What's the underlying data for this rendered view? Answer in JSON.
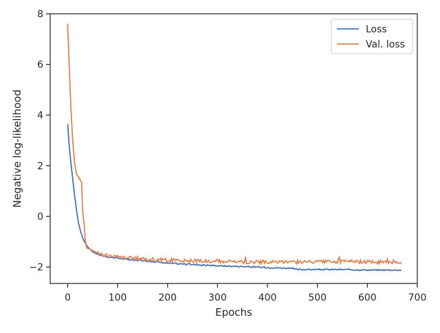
{
  "chart_data": {
    "type": "line",
    "title": "",
    "xlabel": "Epochs",
    "ylabel": "Negative log-likelihood",
    "xlim": [
      -35,
      700
    ],
    "ylim": [
      -2.65,
      8.0
    ],
    "xticks": [
      0,
      100,
      200,
      300,
      400,
      500,
      600,
      700
    ],
    "yticks": [
      -2,
      0,
      2,
      4,
      6,
      8
    ],
    "xtick_labels": [
      "0",
      "100",
      "200",
      "300",
      "400",
      "500",
      "600",
      "700"
    ],
    "ytick_labels": [
      "−2",
      "0",
      "2",
      "4",
      "6",
      "8"
    ],
    "grid": false,
    "legend_position": "top-right",
    "series": [
      {
        "name": "Loss",
        "color": "#4c72b0",
        "points": [
          [
            0,
            3.65
          ],
          [
            3,
            2.8
          ],
          [
            6,
            2.2
          ],
          [
            10,
            1.5
          ],
          [
            14,
            0.8
          ],
          [
            18,
            0.2
          ],
          [
            22,
            -0.3
          ],
          [
            26,
            -0.6
          ],
          [
            30,
            -0.85
          ],
          [
            35,
            -1.05
          ],
          [
            40,
            -1.2
          ],
          [
            50,
            -1.4
          ],
          [
            60,
            -1.5
          ],
          [
            70,
            -1.55
          ],
          [
            80,
            -1.6
          ],
          [
            100,
            -1.65
          ],
          [
            120,
            -1.7
          ],
          [
            150,
            -1.75
          ],
          [
            180,
            -1.8
          ],
          [
            200,
            -1.85
          ],
          [
            250,
            -1.9
          ],
          [
            300,
            -1.95
          ],
          [
            350,
            -1.98
          ],
          [
            400,
            -2.02
          ],
          [
            430,
            -2.04
          ],
          [
            450,
            -2.06
          ],
          [
            460,
            -2.1
          ],
          [
            500,
            -2.1
          ],
          [
            550,
            -2.1
          ],
          [
            600,
            -2.12
          ],
          [
            640,
            -2.12
          ],
          [
            668,
            -2.12
          ]
        ]
      },
      {
        "name": "Val. loss",
        "color": "#dd8452",
        "points": [
          [
            0,
            7.6
          ],
          [
            3,
            6.0
          ],
          [
            6,
            4.5
          ],
          [
            10,
            3.0
          ],
          [
            14,
            2.1
          ],
          [
            18,
            1.65
          ],
          [
            22,
            1.55
          ],
          [
            26,
            1.4
          ],
          [
            28,
            1.35
          ],
          [
            30,
            0.2
          ],
          [
            33,
            -0.3
          ],
          [
            35,
            -0.9
          ],
          [
            38,
            -1.25
          ],
          [
            45,
            -1.3
          ],
          [
            55,
            -1.4
          ],
          [
            65,
            -1.5
          ],
          [
            80,
            -1.55
          ],
          [
            100,
            -1.6
          ],
          [
            130,
            -1.65
          ],
          [
            160,
            -1.7
          ],
          [
            200,
            -1.72
          ],
          [
            250,
            -1.75
          ],
          [
            300,
            -1.77
          ],
          [
            350,
            -1.8
          ],
          [
            400,
            -1.8
          ],
          [
            450,
            -1.8
          ],
          [
            500,
            -1.8
          ],
          [
            550,
            -1.78
          ],
          [
            600,
            -1.8
          ],
          [
            650,
            -1.8
          ],
          [
            668,
            -1.8
          ]
        ]
      }
    ]
  }
}
